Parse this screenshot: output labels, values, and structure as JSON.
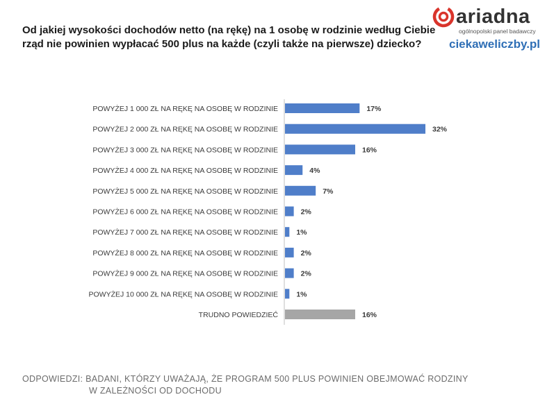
{
  "header": {
    "title_line1": "Od jakiej wysokości dochodów netto (na rękę) na 1 osobę w rodzinie według Ciebie",
    "title_line2": "rząd nie powinien wypłacać 500 plus na każde (czyli także na pierwsze) dziecko?"
  },
  "branding": {
    "logo_text": "ariadna",
    "logo_subtitle": "ogólnopolski panel badawczy",
    "site": "ciekaweliczby.pl",
    "logo_color": "#d9342b"
  },
  "footer": {
    "label": "ODPOWIEDZI:",
    "text_line1": "BADANI, KTÓRZY UWAŻAJĄ, ŻE PROGRAM 500 PLUS POWINIEN OBEJMOWAĆ RODZINY",
    "text_line2": "W ZALEŻNOŚCI OD DOCHODU"
  },
  "chart_data": {
    "type": "bar",
    "orientation": "horizontal",
    "categories": [
      "POWYŻEJ 1 000 ZŁ NA RĘKĘ NA OSOBĘ  W RODZINIE",
      "POWYŻEJ 2 000 ZŁ NA RĘKĘ NA OSOBĘ  W RODZINIE",
      "POWYŻEJ 3 000  ZŁ NA RĘKĘ NA OSOBĘ  W RODZINIE",
      "POWYŻEJ 4 000 ZŁ NA RĘKĘ NA OSOBĘ  W RODZINIE",
      "POWYŻEJ 5 000 ZŁ NA RĘKĘ NA OSOBĘ  W RODZINIE",
      "POWYŻEJ 6 000 ZŁ NA RĘKĘ NA OSOBĘ  W RODZINIE",
      "POWYŻEJ 7 000 ZŁ NA RĘKĘ NA OSOBĘ  W RODZINIE",
      "POWYŻEJ 8 000 ZŁ NA RĘKĘ NA OSOBĘ  W RODZINIE",
      "POWYŻEJ 9 000 ZŁ NA RĘKĘ NA OSOBĘ  W RODZINIE",
      "POWYŻEJ 10  000 ZŁ NA RĘKĘ NA OSOBĘ  W RODZINIE",
      "TRUDNO POWIEDZIEĆ"
    ],
    "values": [
      17,
      32,
      16,
      4,
      7,
      2,
      1,
      2,
      2,
      1,
      16
    ],
    "value_labels": [
      "17%",
      "32%",
      "16%",
      "4%",
      "7%",
      "2%",
      "1%",
      "2%",
      "2%",
      "1%",
      "16%"
    ],
    "bar_colors": [
      "#4f7ec9",
      "#4f7ec9",
      "#4f7ec9",
      "#4f7ec9",
      "#4f7ec9",
      "#4f7ec9",
      "#4f7ec9",
      "#4f7ec9",
      "#4f7ec9",
      "#4f7ec9",
      "#a6a6a6"
    ],
    "unit": "%",
    "xlim": [
      0,
      32
    ],
    "grid": false,
    "legend": "none"
  }
}
